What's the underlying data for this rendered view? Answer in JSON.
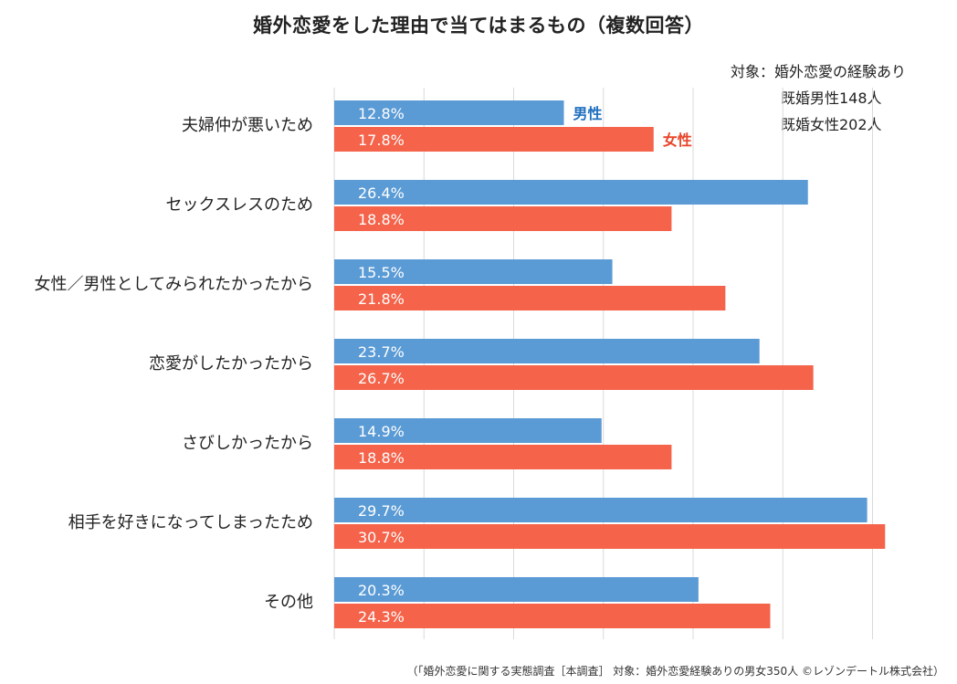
{
  "title": "婚外恋愛をした理由で当てはまるもの（複数回答）",
  "note": {
    "line1": "対象：婚外恋愛の経験あり",
    "line2": "既婚男性148人",
    "line3": "既婚女性202人"
  },
  "footer": "（「婚外恋愛に関する実態調査［本調査］ 対象：婚外恋愛経験ありの男女350人 ©レゾンデートル株式会社）",
  "colors": {
    "male": "#5b9bd5",
    "female": "#f4634a",
    "grid": "#d9d9d9"
  },
  "chart_data": {
    "type": "bar",
    "orientation": "horizontal",
    "title": "婚外恋愛をした理由で当てはまるもの（複数回答）",
    "categories": [
      "夫婦仲が悪いため",
      "セックスレスのため",
      "女性／男性としてみられたかったから",
      "恋愛がしたかったから",
      "さびしかったから",
      "相手を好きになってしまったため",
      "その他"
    ],
    "series": [
      {
        "name": "男性",
        "values": [
          12.8,
          26.4,
          15.5,
          23.7,
          14.9,
          29.7,
          20.3
        ],
        "labels": [
          "12.8%",
          "26.4%",
          "15.5%",
          "23.7%",
          "14.9%",
          "29.7%",
          "20.3%"
        ]
      },
      {
        "name": "女性",
        "values": [
          17.8,
          18.8,
          21.8,
          26.7,
          18.8,
          30.7,
          24.3
        ],
        "labels": [
          "17.8%",
          "18.8%",
          "21.8%",
          "26.7%",
          "18.8%",
          "30.7%",
          "24.3%"
        ]
      }
    ],
    "xlim": [
      0,
      35
    ],
    "grid": true,
    "legend": "inline next to first category bars"
  }
}
